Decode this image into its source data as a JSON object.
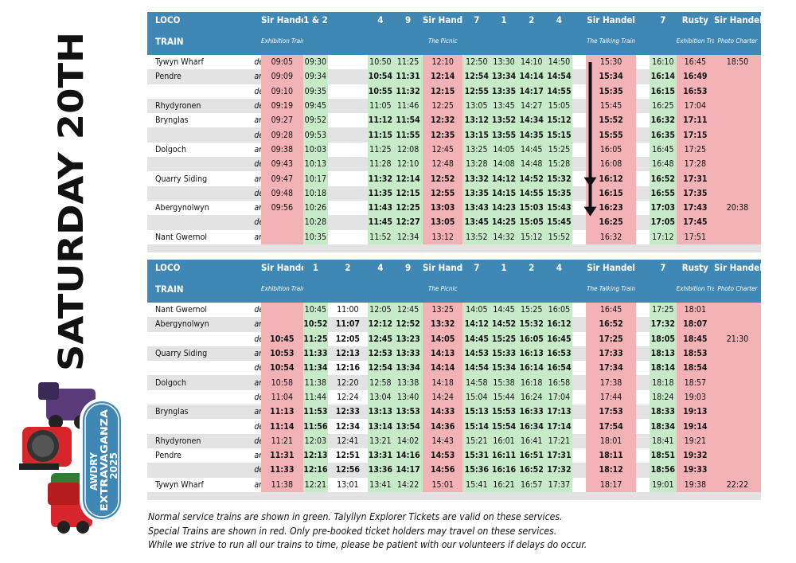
{
  "page_title": "SATURDAY 20TH",
  "logo": {
    "line1": "AWDRY",
    "line2": "EXTRAVAGANZA",
    "line3": "2025"
  },
  "loco_label": "LOCO",
  "train_label": "TRAIN",
  "colors": {
    "header": "#3f88b6",
    "green": "#c7ebc9",
    "red": "#f3b2b6",
    "stripe": "#e3e3e3"
  },
  "up": {
    "locos": [
      "Sir Handel",
      "1 & 2",
      "",
      "4",
      "9",
      "Sir Handel",
      "7",
      "1",
      "2",
      "4",
      "",
      "Sir Handel",
      "",
      "7",
      "Rusty",
      "Sir Handel"
    ],
    "train_names": [
      {
        "col": 0,
        "span": 1,
        "text": "Exhibition Train"
      },
      {
        "col": 5,
        "span": 1,
        "text": "The Picnic"
      },
      {
        "col": 11,
        "span": 1,
        "text": "The Talking Train"
      },
      {
        "col": 14,
        "span": 1,
        "text": "Exhibition Train"
      },
      {
        "col": 15,
        "span": 1,
        "text": "Photo Charter"
      }
    ],
    "col_colors": [
      "r",
      "g",
      "",
      "g",
      "g",
      "r",
      "g",
      "g",
      "g",
      "g",
      "",
      "r",
      "",
      "g",
      "r",
      "r"
    ],
    "rows": [
      {
        "station": "Tywyn Wharf",
        "ad": "dep",
        "times": [
          "09:05",
          "09:30",
          "",
          "10:50",
          "11:25",
          "12:10",
          "12:50",
          "13:30",
          "14:10",
          "14:50",
          "",
          "15:30",
          "",
          "16:10",
          "16:45",
          "18:50"
        ]
      },
      {
        "station": "Pendre",
        "ad": "arr",
        "times": [
          "09:09",
          "09:34",
          "",
          "10:54",
          "11:31",
          "12:14",
          "12:54",
          "13:34",
          "14:14",
          "14:54",
          "",
          "15:34",
          "",
          "16:14",
          "16:49",
          ""
        ]
      },
      {
        "station": "",
        "ad": "dep",
        "times": [
          "09:10",
          "09:35",
          "",
          "10:55",
          "11:32",
          "12:15",
          "12:55",
          "13:35",
          "14:17",
          "14:55",
          "",
          "15:35",
          "",
          "16:15",
          "16:53",
          ""
        ]
      },
      {
        "station": "Rhydyronen",
        "ad": "dep",
        "times": [
          "09:19",
          "09:45",
          "",
          "11:05",
          "11:46",
          "12:25",
          "13:05",
          "13:45",
          "14:27",
          "15:05",
          "",
          "15:45",
          "",
          "16:25",
          "17:04",
          ""
        ]
      },
      {
        "station": "Brynglas",
        "ad": "arr",
        "times": [
          "09:27",
          "09:52",
          "",
          "11:12",
          "11:54",
          "12:32",
          "13:12",
          "13:52",
          "14:34",
          "15:12",
          "",
          "15:52",
          "",
          "16:32",
          "17:11",
          ""
        ]
      },
      {
        "station": "",
        "ad": "dep",
        "times": [
          "09:28",
          "09:53",
          "",
          "11:15",
          "11:55",
          "12:35",
          "13:15",
          "13:55",
          "14:35",
          "15:15",
          "",
          "15:55",
          "",
          "16:35",
          "17:15",
          ""
        ]
      },
      {
        "station": "Dolgoch",
        "ad": "arr",
        "times": [
          "09:38",
          "10:03",
          "",
          "11:25",
          "12:08",
          "12:45",
          "13:25",
          "14:05",
          "14:45",
          "15:25",
          "",
          "16:05",
          "",
          "16:45",
          "17:25",
          ""
        ]
      },
      {
        "station": "",
        "ad": "dep",
        "times": [
          "09:43",
          "10:13",
          "",
          "11:28",
          "12:10",
          "12:48",
          "13:28",
          "14:08",
          "14:48",
          "15:28",
          "",
          "16:08",
          "",
          "16:48",
          "17:28",
          ""
        ]
      },
      {
        "station": "Quarry Siding",
        "ad": "arr",
        "times": [
          "09:47",
          "10:17",
          "",
          "11:32",
          "12:14",
          "12:52",
          "13:32",
          "14:12",
          "14:52",
          "15:32",
          "",
          "16:12",
          "",
          "16:52",
          "17:31",
          ""
        ]
      },
      {
        "station": "",
        "ad": "dep",
        "times": [
          "09:48",
          "10:18",
          "",
          "11:35",
          "12:15",
          "12:55",
          "13:35",
          "14:15",
          "14:55",
          "15:35",
          "",
          "16:15",
          "",
          "16:55",
          "17:35",
          ""
        ]
      },
      {
        "station": "Abergynolwyn",
        "ad": "arr",
        "times": [
          "09:56",
          "10:26",
          "",
          "11:43",
          "12:25",
          "13:03",
          "13:43",
          "14:23",
          "15:03",
          "15:43",
          "",
          "16:23",
          "",
          "17:03",
          "17:43",
          "20:38"
        ]
      },
      {
        "station": "",
        "ad": "dep",
        "times": [
          "",
          "10:28",
          "",
          "11:45",
          "12:27",
          "13:05",
          "13:45",
          "14:25",
          "15:05",
          "15:45",
          "",
          "16:25",
          "",
          "17:05",
          "17:45",
          ""
        ]
      },
      {
        "station": "Nant Gwernol",
        "ad": "arr",
        "times": [
          "",
          "10:35",
          "",
          "11:52",
          "12:34",
          "13:12",
          "13:52",
          "14:32",
          "15:12",
          "15:52",
          "",
          "16:32",
          "",
          "17:12",
          "17:51",
          ""
        ]
      }
    ]
  },
  "down": {
    "locos": [
      "Sir Handel",
      "1",
      "2",
      "4",
      "9",
      "Sir Handel",
      "7",
      "1",
      "2",
      "4",
      "",
      "Sir Handel",
      "",
      "7",
      "Rusty",
      "Sir Handel"
    ],
    "train_names": [
      {
        "col": 0,
        "span": 1,
        "text": "Exhibition Train"
      },
      {
        "col": 5,
        "span": 1,
        "text": "The Picnic"
      },
      {
        "col": 11,
        "span": 1,
        "text": "The Talking Train"
      },
      {
        "col": 14,
        "span": 1,
        "text": "Exhibition Train"
      },
      {
        "col": 15,
        "span": 1,
        "text": "Photo Charter"
      }
    ],
    "col_colors": [
      "r",
      "g",
      "",
      "g",
      "g",
      "r",
      "g",
      "g",
      "g",
      "g",
      "",
      "r",
      "",
      "g",
      "r",
      "r"
    ],
    "rows": [
      {
        "station": "Nant Gwernol",
        "ad": "dep",
        "times": [
          "",
          "10:45",
          "11:00",
          "12:05",
          "12:45",
          "13:25",
          "14:05",
          "14:45",
          "15:25",
          "16:05",
          "",
          "16:45",
          "",
          "17:25",
          "18:01",
          ""
        ]
      },
      {
        "station": "Abergynolwyn",
        "ad": "arr",
        "times": [
          "",
          "10:52",
          "11:07",
          "12:12",
          "12:52",
          "13:32",
          "14:12",
          "14:52",
          "15:32",
          "16:12",
          "",
          "16:52",
          "",
          "17:32",
          "18:07",
          ""
        ]
      },
      {
        "station": "",
        "ad": "dep",
        "times": [
          "10:45",
          "11:25",
          "12:05",
          "12:45",
          "13:23",
          "14:05",
          "14:45",
          "15:25",
          "16:05",
          "16:45",
          "",
          "17:25",
          "",
          "18:05",
          "18:45",
          "21:30"
        ]
      },
      {
        "station": "Quarry Siding",
        "ad": "arr",
        "times": [
          "10:53",
          "11:33",
          "12:13",
          "12:53",
          "13:33",
          "14:13",
          "14:53",
          "15:33",
          "16:13",
          "16:53",
          "",
          "17:33",
          "",
          "18:13",
          "18:53",
          ""
        ]
      },
      {
        "station": "",
        "ad": "dep",
        "times": [
          "10:54",
          "11:34",
          "12:16",
          "12:54",
          "13:34",
          "14:14",
          "14:54",
          "15:34",
          "16:14",
          "16:54",
          "",
          "17:34",
          "",
          "18:14",
          "18:54",
          ""
        ]
      },
      {
        "station": "Dolgoch",
        "ad": "arr",
        "times": [
          "10:58",
          "11:38",
          "12:20",
          "12:58",
          "13:38",
          "14:18",
          "14:58",
          "15:38",
          "16:18",
          "16:58",
          "",
          "17:38",
          "",
          "18:18",
          "18:57",
          ""
        ]
      },
      {
        "station": "",
        "ad": "dep",
        "times": [
          "11:04",
          "11:44",
          "12:24",
          "13:04",
          "13:40",
          "14:24",
          "15:04",
          "15:44",
          "16:24",
          "17:04",
          "",
          "17:44",
          "",
          "18:24",
          "19:03",
          ""
        ]
      },
      {
        "station": "Brynglas",
        "ad": "arr",
        "times": [
          "11:13",
          "11:53",
          "12:33",
          "13:13",
          "13:53",
          "14:33",
          "15:13",
          "15:53",
          "16:33",
          "17:13",
          "",
          "17:53",
          "",
          "18:33",
          "19:13",
          ""
        ]
      },
      {
        "station": "",
        "ad": "dep",
        "times": [
          "11:14",
          "11:56",
          "12:34",
          "13:14",
          "13:54",
          "14:36",
          "15:14",
          "15:54",
          "16:34",
          "17:14",
          "",
          "17:54",
          "",
          "18:34",
          "19:14",
          ""
        ]
      },
      {
        "station": "Rhydyronen",
        "ad": "dep",
        "times": [
          "11:21",
          "12:03",
          "12:41",
          "13:21",
          "14:02",
          "14:43",
          "15:21",
          "16:01",
          "16:41",
          "17:21",
          "",
          "18:01",
          "",
          "18:41",
          "19:21",
          ""
        ]
      },
      {
        "station": "Pendre",
        "ad": "arr",
        "times": [
          "11:31",
          "12:13",
          "12:51",
          "13:31",
          "14:16",
          "14:53",
          "15:31",
          "16:11",
          "16:51",
          "17:31",
          "",
          "18:11",
          "",
          "18:51",
          "19:32",
          ""
        ]
      },
      {
        "station": "",
        "ad": "dep",
        "times": [
          "11:33",
          "12:16",
          "12:56",
          "13:36",
          "14:17",
          "14:56",
          "15:36",
          "16:16",
          "16:52",
          "17:32",
          "",
          "18:12",
          "",
          "18:56",
          "19:33",
          ""
        ]
      },
      {
        "station": "Tywyn Wharf",
        "ad": "arr",
        "times": [
          "11:38",
          "12:21",
          "13:01",
          "13:41",
          "14:22",
          "15:01",
          "15:41",
          "16:21",
          "16:57",
          "17:37",
          "",
          "18:17",
          "",
          "19:01",
          "19:38",
          "22:22"
        ]
      }
    ]
  },
  "footnotes": [
    "Normal service trains are shown in green. Talyllyn Explorer Tickets are valid on these services.",
    "Special Trains are shown in red. Only pre-booked ticket holders may travel on these services.",
    "While we strive to run all our trains to time, please be patient with our volunteers if delays do occur."
  ]
}
